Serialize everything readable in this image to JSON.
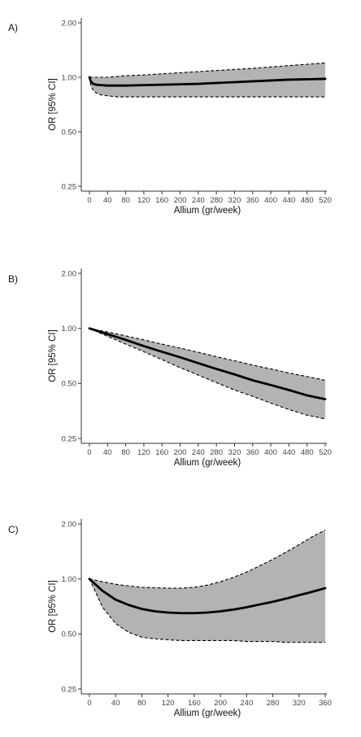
{
  "colors": {
    "band_fill": "#b3b3b3",
    "line": "#000000",
    "axis": "#333333"
  },
  "chart_data": [
    {
      "type": "line",
      "panel_label": "A)",
      "xlabel": "Allium (gr/week)",
      "ylabel": "OR [95% CI]",
      "x_ticks": [
        0,
        40,
        80,
        120,
        160,
        200,
        240,
        280,
        320,
        360,
        400,
        440,
        480,
        520
      ],
      "y_ticks": [
        0.25,
        0.5,
        1.0,
        2.0
      ],
      "y_tick_labels": [
        "0.25",
        "0.50",
        "1.00",
        "2.00"
      ],
      "y_scale": "log",
      "xlim": [
        0,
        520
      ],
      "ylim": [
        0.25,
        2.0
      ],
      "grid": false,
      "band_style": "dashed-border",
      "series": [
        {
          "x": [
            0,
            3,
            8,
            15,
            25,
            40,
            60,
            80,
            120,
            160,
            200,
            240,
            280,
            320,
            360,
            400,
            440,
            480,
            520
          ],
          "y": [
            1.0,
            0.95,
            0.92,
            0.91,
            0.905,
            0.9,
            0.9,
            0.9,
            0.905,
            0.91,
            0.915,
            0.92,
            0.93,
            0.94,
            0.95,
            0.96,
            0.97,
            0.975,
            0.98
          ],
          "lower": [
            1.0,
            0.9,
            0.85,
            0.82,
            0.8,
            0.79,
            0.78,
            0.78,
            0.78,
            0.78,
            0.78,
            0.78,
            0.78,
            0.78,
            0.78,
            0.78,
            0.78,
            0.78,
            0.78
          ],
          "upper": [
            1.0,
            1.0,
            1.0,
            1.0,
            1.0,
            1.0,
            1.01,
            1.02,
            1.03,
            1.045,
            1.06,
            1.075,
            1.09,
            1.105,
            1.12,
            1.14,
            1.16,
            1.18,
            1.2
          ]
        }
      ]
    },
    {
      "type": "line",
      "panel_label": "B)",
      "xlabel": "Allium (gr/week)",
      "ylabel": "OR [95% CI]",
      "x_ticks": [
        0,
        40,
        80,
        120,
        160,
        200,
        240,
        280,
        320,
        360,
        400,
        440,
        480,
        520
      ],
      "y_ticks": [
        0.25,
        0.5,
        1.0,
        2.0
      ],
      "y_tick_labels": [
        "0.25",
        "0.50",
        "1.00",
        "2.00"
      ],
      "y_scale": "log",
      "xlim": [
        0,
        520
      ],
      "ylim": [
        0.25,
        2.0
      ],
      "grid": false,
      "band_style": "dashed-border",
      "series": [
        {
          "x": [
            0,
            40,
            80,
            120,
            160,
            200,
            240,
            280,
            320,
            360,
            400,
            440,
            480,
            520
          ],
          "y": [
            1.0,
            0.93,
            0.865,
            0.8,
            0.745,
            0.695,
            0.645,
            0.6,
            0.56,
            0.52,
            0.49,
            0.46,
            0.43,
            0.41
          ],
          "lower": [
            1.0,
            0.905,
            0.82,
            0.745,
            0.675,
            0.61,
            0.555,
            0.505,
            0.46,
            0.425,
            0.39,
            0.36,
            0.335,
            0.32
          ],
          "upper": [
            1.0,
            0.955,
            0.91,
            0.865,
            0.82,
            0.78,
            0.74,
            0.7,
            0.665,
            0.63,
            0.6,
            0.57,
            0.545,
            0.52
          ]
        }
      ]
    },
    {
      "type": "line",
      "panel_label": "C)",
      "xlabel": "Allium (gr/week)",
      "ylabel": "OR [95% CI]",
      "x_ticks": [
        0,
        40,
        80,
        120,
        160,
        200,
        240,
        280,
        320,
        360
      ],
      "y_ticks": [
        0.25,
        0.5,
        1.0,
        2.0
      ],
      "y_tick_labels": [
        "0.25",
        "0.50",
        "1.00",
        "2.00"
      ],
      "y_scale": "log",
      "xlim": [
        0,
        360
      ],
      "ylim": [
        0.25,
        2.0
      ],
      "grid": false,
      "band_style": "dashed-border",
      "series": [
        {
          "x": [
            0,
            20,
            40,
            60,
            80,
            100,
            120,
            140,
            160,
            180,
            200,
            220,
            240,
            260,
            280,
            300,
            320,
            340,
            360
          ],
          "y": [
            1.0,
            0.86,
            0.77,
            0.72,
            0.685,
            0.665,
            0.655,
            0.65,
            0.65,
            0.655,
            0.665,
            0.68,
            0.7,
            0.725,
            0.75,
            0.78,
            0.815,
            0.85,
            0.89
          ],
          "lower": [
            1.0,
            0.7,
            0.57,
            0.51,
            0.48,
            0.47,
            0.465,
            0.46,
            0.46,
            0.46,
            0.46,
            0.46,
            0.455,
            0.455,
            0.455,
            0.45,
            0.45,
            0.45,
            0.45
          ],
          "upper": [
            1.0,
            0.965,
            0.935,
            0.915,
            0.9,
            0.895,
            0.89,
            0.89,
            0.9,
            0.925,
            0.965,
            1.02,
            1.09,
            1.18,
            1.28,
            1.4,
            1.54,
            1.7,
            1.85
          ]
        }
      ]
    }
  ]
}
